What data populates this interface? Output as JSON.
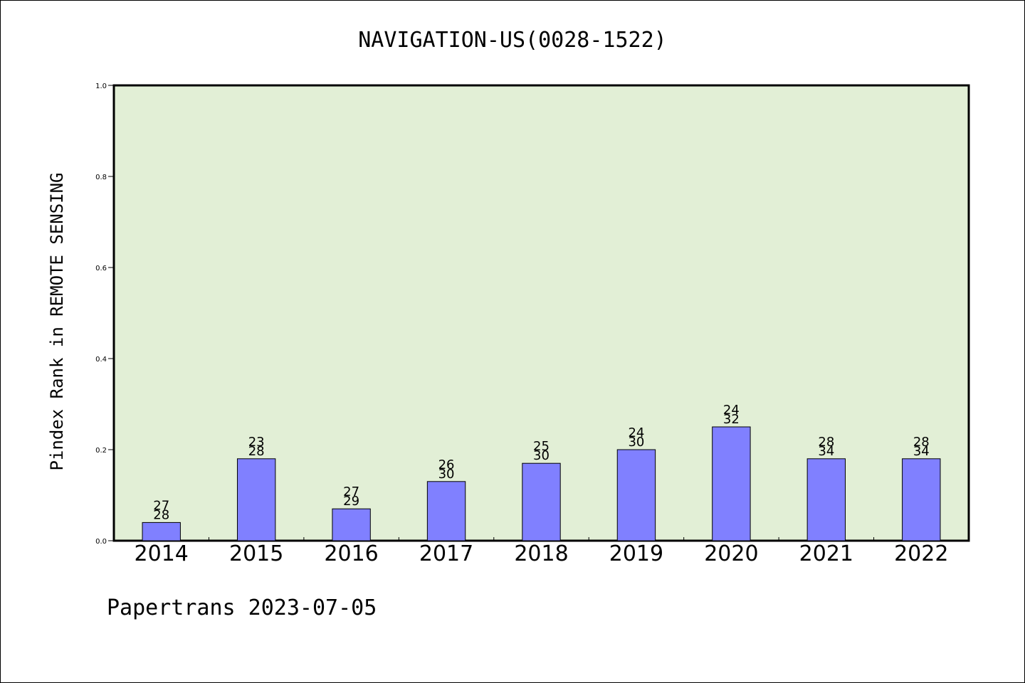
{
  "chart_data": {
    "type": "bar",
    "title": "NAVIGATION-US(0028-1522)",
    "ylabel": "Pindex Rank in REMOTE SENSING",
    "xlabel": "",
    "ylim": [
      0,
      1.0
    ],
    "yticks": [
      "0.0",
      "0.2",
      "0.4",
      "0.6",
      "0.8",
      "1.0"
    ],
    "categories": [
      "2014",
      "2015",
      "2016",
      "2017",
      "2018",
      "2019",
      "2020",
      "2021",
      "2022"
    ],
    "values": [
      0.04,
      0.18,
      0.07,
      0.13,
      0.17,
      0.2,
      0.25,
      0.18,
      0.18
    ],
    "labels_top": [
      "27",
      "23",
      "27",
      "26",
      "25",
      "24",
      "24",
      "28",
      "28"
    ],
    "labels_bottom": [
      "28",
      "28",
      "29",
      "30",
      "30",
      "30",
      "32",
      "34",
      "34"
    ],
    "bar_color": "#8080ff",
    "plot_background": "#e2efd6",
    "grid": false
  },
  "footer": "Papertrans 2023-07-05"
}
